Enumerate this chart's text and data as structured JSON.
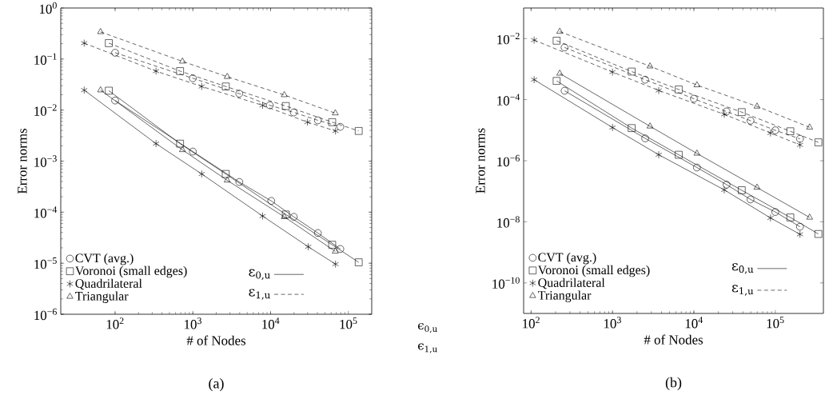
{
  "chart_data": [
    {
      "type": "line",
      "xlabel": "# of Nodes",
      "ylabel": "Error norms",
      "log": "xy",
      "legend": "bottom left",
      "xlim": [
        20,
        200000
      ],
      "ylim": [
        1e-06,
        1
      ],
      "xticks": [
        {
          "value": 100,
          "label": "10$^{2}$"
        },
        {
          "value": 1000,
          "label": "10$^{3}$"
        },
        {
          "value": 10000,
          "label": "10$^{4}$"
        },
        {
          "value": 100000,
          "label": "10$^{5}$"
        }
      ],
      "yticks": [
        {
          "value": 1e-06,
          "label": "10$^{−6}$"
        },
        {
          "value": 1e-05,
          "label": "10$^{−5}$"
        },
        {
          "value": 0.0001,
          "label": "10$^{−4}$"
        },
        {
          "value": 0.001,
          "label": "10$^{−3}$"
        },
        {
          "value": 0.01,
          "label": "10$^{−2}$"
        },
        {
          "value": 0.1,
          "label": "10$^{−1}$"
        },
        {
          "value": 1,
          "label": "10$^{0}$"
        }
      ],
      "annotations": [
        "ε$_{0,u}$",
        "ε$_{1,u}$",
        "(a)",
        "ϵ$_{0,u}$",
        "ϵ$_{1,u}$"
      ],
      "series": [
        {
          "name": "CVT (avg.)",
          "color": "#000000",
          "marker": "circle",
          "line_style": "solid",
          "x": [
            100,
            1000,
            3960,
            10200,
            19900,
            40600,
            78900
          ],
          "values": [
            0.0154,
            0.00154,
            0.00039,
            0.000166,
            8.1e-05,
            3.9e-05,
            1.9e-05
          ]
        },
        {
          "name": "Voronoi (small edges)",
          "color": "#000000",
          "marker": "square",
          "line_style": "solid",
          "x": [
            83,
            685,
            2650,
            15700,
            62000,
            136000
          ],
          "values": [
            0.024,
            0.0022,
            0.00056,
            9e-05,
            2.3e-05,
            1.04e-05
          ]
        },
        {
          "name": "Quadrilateral",
          "color": "#000000",
          "marker": "cross",
          "line_style": "solid",
          "x": [
            40,
            336,
            1300,
            7890,
            30500,
            68400
          ],
          "values": [
            0.0246,
            0.0022,
            0.00056,
            8.4e-05,
            2.1e-05,
            9.6e-06
          ]
        },
        {
          "name": "Triangular",
          "color": "#000000",
          "marker": "triangle",
          "line_style": "solid",
          "x": [
            65,
            735,
            2770,
            15000,
            68000
          ],
          "values": [
            0.0246,
            0.00166,
            0.00042,
            8.1e-05,
            1.7e-05
          ]
        },
        {
          "color": "#000000",
          "marker": "circle",
          "line_style": "dashed",
          "x": [
            100,
            1000,
            3960,
            9770,
            19900,
            40600,
            78900
          ],
          "values": [
            0.133,
            0.042,
            0.021,
            0.0124,
            0.009,
            0.0063,
            0.0047
          ]
        },
        {
          "color": "#000000",
          "marker": "square",
          "line_style": "dashed",
          "x": [
            83,
            685,
            2650,
            15700,
            62000,
            136000
          ],
          "values": [
            0.205,
            0.058,
            0.029,
            0.012,
            0.0058,
            0.0039
          ]
        },
        {
          "color": "#000000",
          "marker": "cross",
          "line_style": "dashed",
          "x": [
            40,
            336,
            1300,
            7890,
            29800,
            68400
          ],
          "values": [
            0.205,
            0.058,
            0.029,
            0.0124,
            0.0058,
            0.0039
          ]
        },
        {
          "color": "#000000",
          "marker": "triangle",
          "line_style": "dashed",
          "x": [
            65,
            735,
            2770,
            15000,
            68000
          ],
          "values": [
            0.34,
            0.09,
            0.045,
            0.0198,
            0.0087
          ]
        }
      ]
    },
    {
      "type": "line",
      "xlabel": "# of Nodes",
      "ylabel": "Error norms",
      "log": "xy",
      "legend": "bottom left",
      "xlim": [
        81,
        390000
      ],
      "ylim": [
        1e-11,
        0.1
      ],
      "xticks": [
        {
          "value": 100,
          "label": "10$^{2}$"
        },
        {
          "value": 1000,
          "label": "10$^{3}$"
        },
        {
          "value": 10000,
          "label": "10$^{4}$"
        },
        {
          "value": 100000,
          "label": "10$^{5}$"
        }
      ],
      "yticks": [
        {
          "value": 1e-10,
          "label": "10$^{−10}$"
        },
        {
          "value": 1e-08,
          "label": "10$^{−8}$"
        },
        {
          "value": 1e-06,
          "label": "10$^{−6}$"
        },
        {
          "value": 0.0001,
          "label": "10$^{−4}$"
        },
        {
          "value": 0.01,
          "label": "10$^{−2}$"
        }
      ],
      "annotations": [
        "ε$_{0,u}$",
        "ε$_{1,u}$",
        "(b)"
      ],
      "series": [
        {
          "name": "CVT (avg.)",
          "color": "#000000",
          "marker": "circle",
          "line_style": "solid",
          "x": [
            258,
            2520,
            10900,
            25200,
            49600,
            100000,
            201000
          ],
          "values": [
            0.000195,
            5.4e-06,
            6e-07,
            1.65e-07,
            5.4e-08,
            2.1e-08,
            6.9e-09
          ]
        },
        {
          "name": "Voronoi (small edges)",
          "color": "#000000",
          "marker": "square",
          "line_style": "solid",
          "x": [
            206,
            1720,
            6510,
            38700,
            153000,
            338000
          ],
          "values": [
            0.00041,
            1.17e-05,
            1.57e-06,
            1.08e-07,
            1.39e-08,
            4e-09
          ]
        },
        {
          "name": "Quadrilateral",
          "color": "#000000",
          "marker": "cross",
          "line_style": "solid",
          "x": [
            109,
            1000,
            3700,
            23600,
            87300,
            201000
          ],
          "values": [
            0.00045,
            1.22e-05,
            1.57e-06,
            1.11e-07,
            1.34e-08,
            3.9e-09
          ]
        },
        {
          "name": "Triangular",
          "color": "#000000",
          "marker": "triangle",
          "line_style": "solid",
          "x": [
            225,
            2890,
            10900,
            59600,
            264000
          ],
          "values": [
            0.00072,
            1.34e-05,
            1.73e-06,
            1.33e-07,
            1.39e-08
          ]
        },
        {
          "color": "#000000",
          "marker": "circle",
          "line_style": "dashed",
          "x": [
            258,
            2520,
            10000,
            25200,
            49600,
            100000,
            201000
          ],
          "values": [
            0.0051,
            0.00045,
            0.000107,
            4.1e-05,
            2.05e-05,
            9.9e-06,
            5.2e-06
          ]
        },
        {
          "color": "#000000",
          "marker": "square",
          "line_style": "dashed",
          "x": [
            206,
            1720,
            6510,
            38700,
            153000,
            338000
          ],
          "values": [
            0.0085,
            0.00083,
            0.000215,
            3.9e-05,
            9.2e-06,
            4e-06
          ]
        },
        {
          "color": "#000000",
          "marker": "cross",
          "line_style": "dashed",
          "x": [
            109,
            1000,
            3700,
            23600,
            87300,
            201000
          ],
          "values": [
            0.0089,
            0.0008,
            0.0002,
            3.3e-05,
            8.1e-06,
            3.3e-06
          ]
        },
        {
          "color": "#000000",
          "marker": "triangle",
          "line_style": "dashed",
          "x": [
            225,
            2890,
            10900,
            59600,
            264000
          ],
          "values": [
            0.0169,
            0.00124,
            0.0003,
            6e-05,
            1.24e-05
          ]
        }
      ]
    }
  ]
}
